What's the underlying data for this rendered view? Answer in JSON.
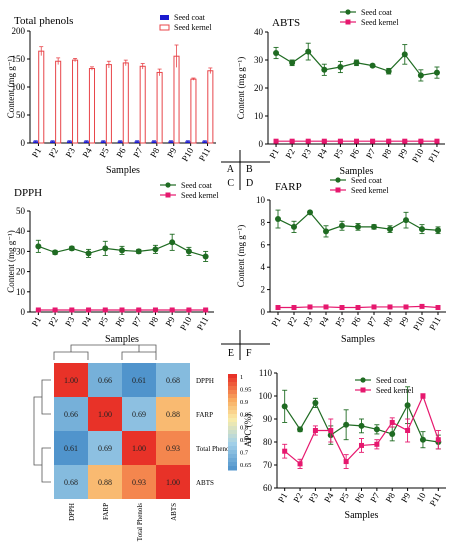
{
  "panel_letters": {
    "A": "A",
    "B": "B",
    "C": "C",
    "D": "D",
    "E": "E",
    "F": "F"
  },
  "colors": {
    "seed_coat": "#1f6b22",
    "seed_kernel": "#e6186e",
    "bar_coat": "#1a1acf",
    "bar_kernel": "#e8454a"
  },
  "chart_data": [
    {
      "id": "A",
      "type": "bar",
      "title": "Total phenols",
      "xlabel": "Samples",
      "ylabel": "Content (mg g⁻¹)",
      "ylim": [
        0,
        200
      ],
      "yticks": [
        0,
        50,
        100,
        150,
        200
      ],
      "categories": [
        "P1",
        "P2",
        "P3",
        "P4",
        "P5",
        "P6",
        "P7",
        "P8",
        "P9",
        "P10",
        "P11"
      ],
      "series": [
        {
          "name": "Seed coat",
          "values": [
            3,
            3,
            3,
            3,
            3,
            3,
            3,
            3,
            3,
            3,
            3
          ],
          "err": [
            1,
            1,
            1,
            1,
            1,
            1,
            1,
            1,
            1,
            1,
            1
          ]
        },
        {
          "name": "Seed kernel",
          "values": [
            164,
            146,
            148,
            133,
            140,
            143,
            137,
            126,
            155,
            114,
            129
          ],
          "err": [
            8,
            6,
            3,
            3,
            6,
            5,
            5,
            6,
            20,
            2,
            5
          ]
        }
      ],
      "legend": "top-right"
    },
    {
      "id": "B",
      "type": "line",
      "title": "ABTS",
      "xlabel": "Samples",
      "ylabel": "Content (mg g⁻¹)",
      "ylim": [
        0,
        40
      ],
      "yticks": [
        0,
        10,
        20,
        30,
        40
      ],
      "categories": [
        "P1",
        "P2",
        "P3",
        "P4",
        "P5",
        "P6",
        "P7",
        "P8",
        "P9",
        "P10",
        "P11"
      ],
      "series": [
        {
          "name": "Seed coat",
          "values": [
            32.5,
            29,
            33,
            26.5,
            27.5,
            29,
            28,
            26,
            32,
            24.5,
            25.5
          ],
          "err": [
            2,
            1,
            3,
            2,
            2,
            1,
            0.5,
            1,
            3.5,
            2,
            2
          ]
        },
        {
          "name": "Seed kernel",
          "values": [
            1,
            1,
            1,
            1,
            1,
            1,
            1,
            1,
            1,
            1,
            1
          ],
          "err": [
            0.3,
            0.3,
            0.3,
            0.3,
            0.3,
            0.3,
            0.3,
            0.3,
            0.3,
            0.3,
            0.3
          ]
        }
      ],
      "legend": "top-right"
    },
    {
      "id": "C",
      "type": "line",
      "title": "DPPH",
      "xlabel": "Samples",
      "ylabel": "Content (mg g⁻¹)",
      "ylim": [
        0,
        50
      ],
      "yticks": [
        0,
        10,
        20,
        30,
        40,
        50
      ],
      "categories": [
        "P1",
        "P2",
        "P3",
        "P4",
        "P5",
        "P6",
        "P7",
        "P8",
        "P9",
        "P10",
        "P11"
      ],
      "series": [
        {
          "name": "Seed coat",
          "values": [
            32.5,
            29.5,
            31.5,
            29,
            31.5,
            30.5,
            30,
            31,
            34.5,
            30,
            27.5
          ],
          "err": [
            3,
            1,
            1,
            2,
            3.5,
            2,
            1,
            2,
            4,
            2,
            2.5
          ]
        },
        {
          "name": "Seed kernel",
          "values": [
            1,
            1,
            1,
            1,
            1,
            1,
            1,
            1,
            1,
            1,
            1
          ],
          "err": [
            0.3,
            0.3,
            0.3,
            0.3,
            0.3,
            0.3,
            0.3,
            0.3,
            0.3,
            0.3,
            0.3
          ]
        }
      ],
      "legend": "top-right"
    },
    {
      "id": "D",
      "type": "line",
      "title": "FARP",
      "xlabel": "Samples",
      "ylabel": "Content (mg g⁻¹)",
      "ylim": [
        0,
        10
      ],
      "yticks": [
        0,
        2,
        4,
        6,
        8,
        10
      ],
      "categories": [
        "P1",
        "P2",
        "P3",
        "P4",
        "P5",
        "P6",
        "P7",
        "P8",
        "P9",
        "P10",
        "P11"
      ],
      "series": [
        {
          "name": "Seed coat",
          "values": [
            8.3,
            7.6,
            8.9,
            7.2,
            7.7,
            7.6,
            7.6,
            7.4,
            8.2,
            7.4,
            7.3
          ],
          "err": [
            0.8,
            0.5,
            0.1,
            0.5,
            0.4,
            0.3,
            0.2,
            0.3,
            0.7,
            0.4,
            0.3
          ]
        },
        {
          "name": "Seed kernel",
          "values": [
            0.4,
            0.4,
            0.45,
            0.45,
            0.4,
            0.4,
            0.45,
            0.45,
            0.45,
            0.5,
            0.4
          ],
          "err": [
            0.1,
            0.1,
            0.1,
            0.1,
            0.1,
            0.1,
            0.1,
            0.1,
            0.1,
            0.1,
            0.1
          ]
        }
      ],
      "legend": "top-right"
    },
    {
      "id": "E",
      "type": "heatmap",
      "rows": [
        "DPPH",
        "FARP",
        "Total Phenols",
        "ABTS"
      ],
      "cols": [
        "DPPH",
        "FARP",
        "Total Phenols",
        "ABTS"
      ],
      "values": [
        [
          1.0,
          0.66,
          0.61,
          0.68
        ],
        [
          0.66,
          1.0,
          0.69,
          0.88
        ],
        [
          0.61,
          0.69,
          1.0,
          0.93
        ],
        [
          0.68,
          0.88,
          0.93,
          1.0
        ]
      ],
      "colorbar": {
        "min": 0.6,
        "max": 1.0,
        "ticks": [
          "1",
          "0.95",
          "0.9",
          "0.85",
          "0.8",
          "0.75",
          "0.7",
          "0.65"
        ]
      }
    },
    {
      "id": "F",
      "type": "line",
      "xlabel": "Samples",
      "ylabel": "APC (%)",
      "ylim": [
        60,
        110
      ],
      "yticks": [
        60,
        70,
        80,
        90,
        100,
        110
      ],
      "categories": [
        "P1",
        "P2",
        "P3",
        "P4",
        "P5",
        "P6",
        "P7",
        "P8",
        "P9",
        "10",
        "P11"
      ],
      "series": [
        {
          "name": "Seed coat",
          "values": [
            95.5,
            85.5,
            97,
            83,
            87.5,
            87,
            85.5,
            83.5,
            96,
            81,
            80
          ],
          "err": [
            7,
            1,
            2,
            4,
            6.5,
            3,
            2,
            3,
            8,
            3.5,
            3
          ]
        },
        {
          "name": "Seed kernel",
          "values": [
            76,
            70.5,
            85,
            85,
            71.5,
            78.5,
            79,
            88.5,
            85,
            100,
            81
          ],
          "err": [
            3,
            2,
            2,
            5,
            3,
            3,
            2,
            2,
            5,
            1,
            4
          ]
        }
      ],
      "legend": "top-right"
    }
  ]
}
